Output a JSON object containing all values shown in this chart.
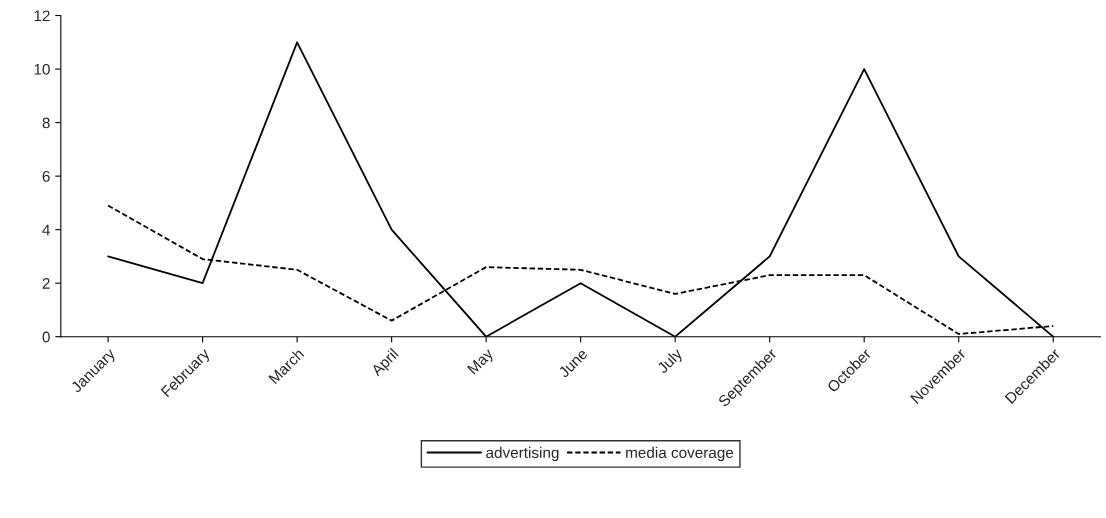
{
  "chart_data": {
    "type": "line",
    "categories": [
      "January",
      "February",
      "March",
      "April",
      "May",
      "June",
      "July",
      "September",
      "October",
      "November",
      "December"
    ],
    "series": [
      {
        "name": "advertising",
        "color": "#000000",
        "line_style": "solid",
        "values": [
          3,
          2,
          11,
          4,
          0,
          2,
          0,
          3,
          10,
          3,
          0
        ]
      },
      {
        "name": "media coverage",
        "color": "#000000",
        "line_style": "dashed",
        "values": [
          4.9,
          2.9,
          2.5,
          0.6,
          2.6,
          2.5,
          1.6,
          2.3,
          2.3,
          0.1,
          0.4
        ]
      }
    ],
    "ylim": [
      0,
      12
    ],
    "yticks": [
      0,
      2,
      4,
      6,
      8,
      10,
      12
    ],
    "grid": false,
    "legend": "bottom",
    "marker": "none"
  }
}
